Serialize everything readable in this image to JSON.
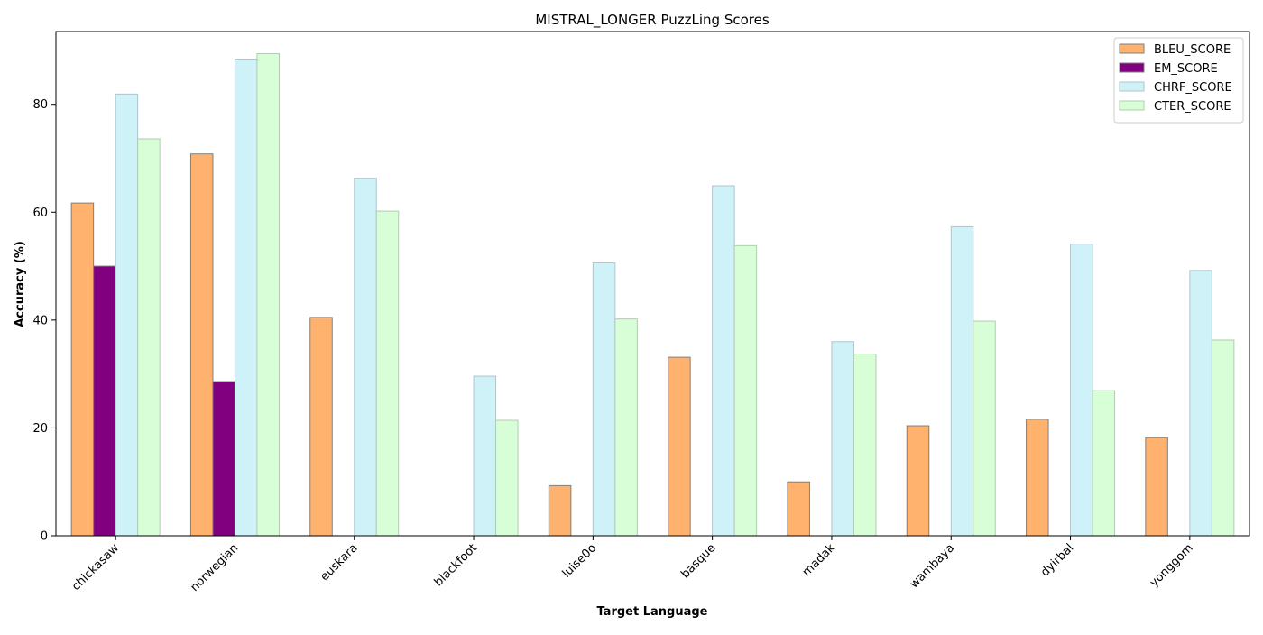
{
  "chart_data": {
    "type": "bar",
    "title": "MISTRAL_LONGER PuzzLing Scores",
    "xlabel": "Target Language",
    "ylabel": "Accuracy (%)",
    "ylim": [
      0,
      93.5
    ],
    "yticks": [
      0,
      20,
      40,
      60,
      80
    ],
    "categories": [
      "chickasaw",
      "norwegian",
      "euskara",
      "blackfoot",
      "luise0o",
      "basque",
      "madak",
      "wambaya",
      "dyirbal",
      "yonggom"
    ],
    "series": [
      {
        "name": "BLEU_SCORE",
        "color": "#ffb26e",
        "edge": "#7f7f7f",
        "values": [
          61.7,
          70.8,
          40.5,
          0.0,
          9.3,
          33.1,
          10.0,
          20.4,
          21.6,
          18.2
        ]
      },
      {
        "name": "EM_SCORE",
        "color": "#800080",
        "edge": "#7f7f7f",
        "values": [
          50.0,
          28.6,
          0.0,
          0.0,
          0.0,
          0.0,
          0.0,
          0.0,
          0.0,
          0.0
        ]
      },
      {
        "name": "CHRF_SCORE",
        "color": "#cef2f8",
        "edge": "#b0c4cc",
        "values": [
          81.9,
          88.4,
          66.3,
          29.6,
          50.6,
          64.9,
          36.0,
          57.3,
          54.1,
          49.2
        ]
      },
      {
        "name": "CTER_SCORE",
        "color": "#d8fed8",
        "edge": "#b0ccb0",
        "values": [
          73.6,
          89.4,
          60.2,
          21.4,
          40.2,
          53.8,
          33.7,
          39.8,
          26.9,
          36.3
        ]
      }
    ],
    "legend_position": "top-right",
    "grid": false
  }
}
